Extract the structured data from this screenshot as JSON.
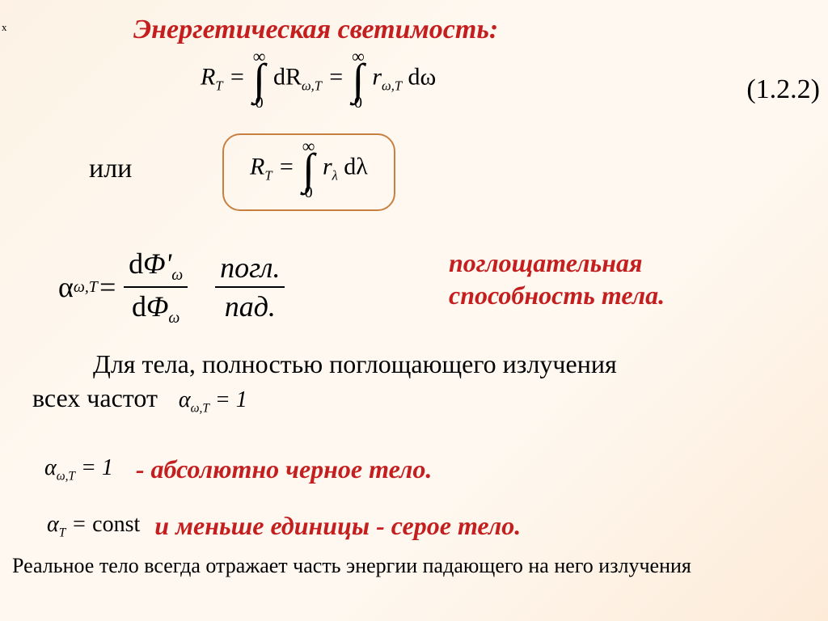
{
  "xmark": "x",
  "title": "Энергетическая светимость:",
  "eqNumber": "(1.2.2)",
  "ili": "или",
  "f1": {
    "lhs_R": "R",
    "lhs_T": "T",
    "eq": " = ",
    "inf": "∞",
    "zero": "0",
    "dR": "dR",
    "sub_wT": "ω,T",
    "r": "r",
    "dw": "dω"
  },
  "f2": {
    "R": "R",
    "T": "T",
    "eq": " = ",
    "inf": "∞",
    "zero": "0",
    "r": "r",
    "lam": "λ",
    "dlam": "dλ"
  },
  "f3": {
    "alpha": "α",
    "sub": "ω,T",
    "eq": " = ",
    "num1_d": "d",
    "num1_Phi": "Φ'",
    "num1_sub": "ω",
    "den1_d": "d",
    "den1_Phi": "Φ",
    "den1_sub": "ω",
    "num2": "погл.",
    "den2": "пад."
  },
  "label1_line1": "поглощательная",
  "label1_line2": "способность тела.",
  "body1_part1": "Для тела, полностью поглощающего излучения",
  "body1_part2": "всех частот",
  "inline_f": {
    "alpha": "α",
    "sub": "ω,T",
    "eq": " = 1"
  },
  "line2_f": {
    "alpha": "α",
    "sub": "ω,T",
    "eq": " = 1"
  },
  "label2": "- абсолютно черное тело.",
  "line3_f": {
    "alpha": "α",
    "sub": "T",
    "eq": " = ",
    "const": "const"
  },
  "label3": "и меньше  единицы -  серое тело.",
  "footer": "Реальное тело всегда отражает часть энергии падающего на него излучения"
}
